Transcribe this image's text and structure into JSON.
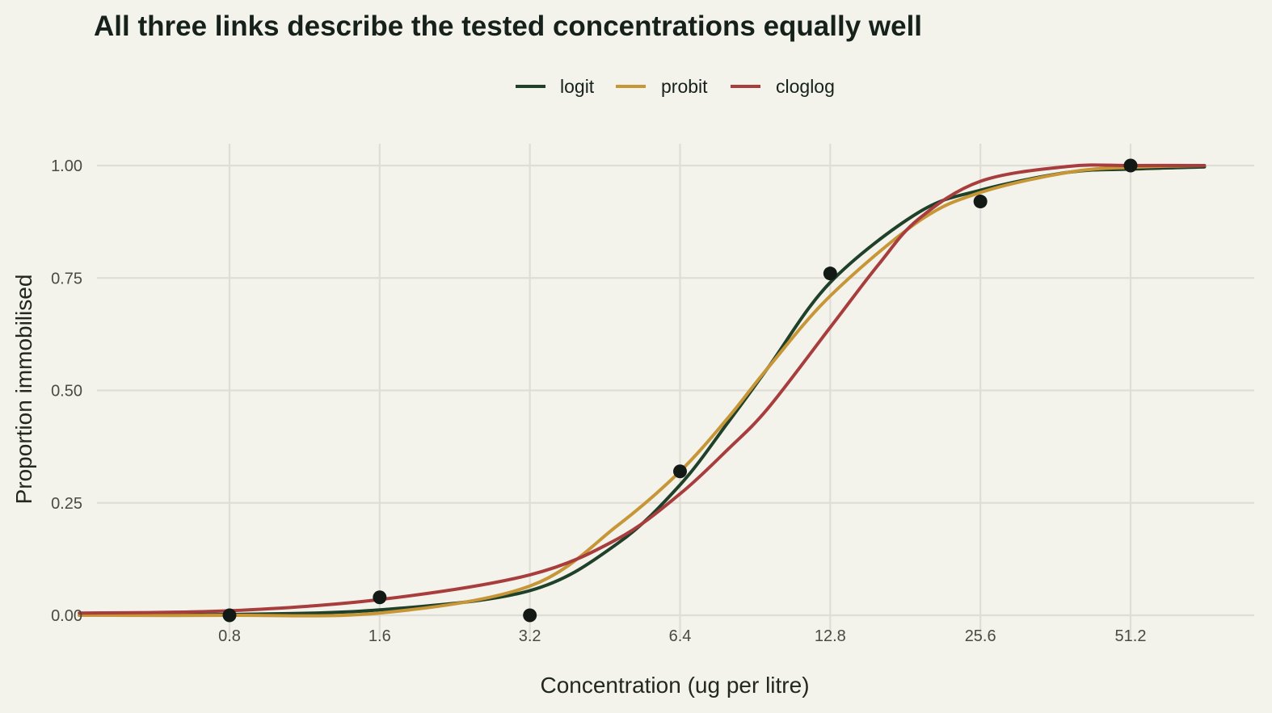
{
  "chart_data": {
    "type": "line",
    "title": "All three links describe the tested concentrations equally well",
    "xlabel": "Concentration (ug per litre)",
    "ylabel": "Proportion immobilised",
    "x_scale": "log2",
    "x_ticks": [
      0.8,
      1.6,
      3.2,
      6.4,
      12.8,
      25.6,
      51.2
    ],
    "x_tick_labels": [
      "0.8",
      "1.6",
      "3.2",
      "6.4",
      "12.8",
      "25.6",
      "51.2"
    ],
    "xlim": [
      0.4,
      75
    ],
    "y_ticks": [
      0,
      0.25,
      0.5,
      0.75,
      1
    ],
    "y_tick_labels": [
      "0.00",
      "0.25",
      "0.50",
      "0.75",
      "1.00"
    ],
    "ylim": [
      -0.03,
      1.05
    ],
    "grid": true,
    "legend_position": "top",
    "series": [
      {
        "name": "logit",
        "color": "#1f4029",
        "x": [
          0.4,
          0.8,
          1.6,
          3.2,
          4.8,
          6.4,
          8.0,
          9.6,
          12.8,
          19.2,
          25.6,
          38.4,
          51.2,
          72.0
        ],
        "values": [
          0.0,
          0.002,
          0.012,
          0.055,
          0.16,
          0.29,
          0.43,
          0.55,
          0.74,
          0.895,
          0.945,
          0.985,
          0.992,
          0.997
        ]
      },
      {
        "name": "probit",
        "color": "#c69637",
        "x": [
          0.4,
          0.8,
          1.6,
          3.2,
          4.8,
          6.4,
          8.0,
          9.6,
          12.8,
          19.2,
          25.6,
          38.4,
          51.2,
          72.0
        ],
        "values": [
          0.0,
          0.0,
          0.005,
          0.065,
          0.2,
          0.32,
          0.44,
          0.55,
          0.71,
          0.875,
          0.94,
          0.985,
          0.996,
          1.0
        ]
      },
      {
        "name": "cloglog",
        "color": "#a83d3d",
        "x": [
          0.4,
          0.8,
          1.6,
          3.2,
          4.8,
          6.4,
          8.0,
          9.6,
          12.8,
          16.0,
          19.2,
          25.6,
          38.4,
          51.2,
          72.0
        ],
        "values": [
          0.005,
          0.01,
          0.035,
          0.09,
          0.17,
          0.27,
          0.37,
          0.46,
          0.64,
          0.78,
          0.88,
          0.965,
          0.998,
          1.0,
          1.0
        ]
      }
    ],
    "observed_points": {
      "color": "#131a16",
      "x": [
        0.8,
        1.6,
        3.2,
        6.4,
        12.8,
        25.6,
        51.2
      ],
      "values": [
        0.0,
        0.04,
        0.0,
        0.32,
        0.76,
        0.92,
        1.0
      ]
    }
  }
}
